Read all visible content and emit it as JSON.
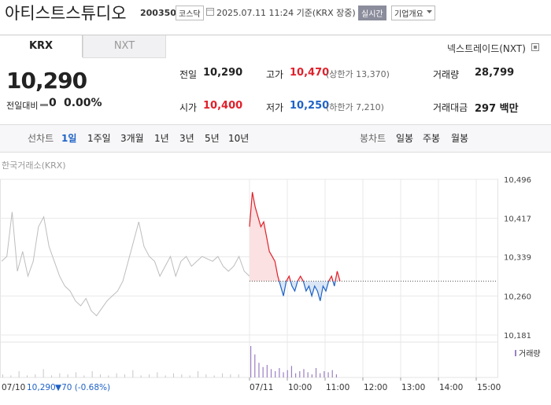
{
  "header": {
    "name": "아티스트스튜디오",
    "code": "200350",
    "market": "코스닥",
    "timestamp": "2025.07.11 11:24 기준(KRX 장중)",
    "realtime": "실시간",
    "company_info": "기업개요"
  },
  "tabs": [
    "KRX",
    "NXT"
  ],
  "nxt_link": "넥스트레이드(NXT)",
  "quote": {
    "price": "10,290",
    "change_label": "전일대비",
    "change": "0",
    "change_pct": "0.00%"
  },
  "stats": [
    [
      {
        "label": "전일",
        "value": "10,290"
      },
      {
        "label": "고가",
        "value": "10,470",
        "note": "(상한가 13,370)",
        "color": "#e0202b"
      },
      {
        "label": "거래량",
        "value": "28,799"
      }
    ],
    [
      {
        "label": "시가",
        "value": "10,400",
        "color": "#e0202b"
      },
      {
        "label": "저가",
        "value": "10,250",
        "note": "(하한가 7,210)",
        "color": "#1f62c7"
      },
      {
        "label": "거래대금",
        "value": "297 백만"
      }
    ]
  ],
  "periods": {
    "line_label": "선차트",
    "line": [
      "1일",
      "1주일",
      "3개월",
      "1년",
      "3년",
      "5년",
      "10년"
    ],
    "selected": 0,
    "candle_label": "봉차트",
    "candle": [
      "일봉",
      "주봉",
      "월봉"
    ]
  },
  "chart_data": {
    "type": "line",
    "source": "한국거래소(KRX)",
    "ylim": [
      10181,
      10496
    ],
    "yticks": [
      {
        "value": 10181,
        "label": "10,181"
      },
      {
        "value": 10260,
        "label": "10,260"
      },
      {
        "value": 10339,
        "label": "10,339"
      },
      {
        "value": 10417,
        "label": "10,417"
      },
      {
        "value": 10496,
        "label": "10,496"
      }
    ],
    "xticks": [
      "07/11",
      "10:00",
      "11:00",
      "12:00",
      "13:00",
      "14:00",
      "15:00"
    ],
    "baseline": 10290,
    "grid": true,
    "series": [
      {
        "color": "#bdbdbd",
        "values": [
          10330,
          10340,
          10430,
          10310,
          10350,
          10300,
          10330,
          10400,
          10420,
          10360,
          10330,
          10300,
          10280,
          10270,
          10250,
          10240,
          10255,
          10230,
          10220,
          10235,
          10250,
          10260,
          10270,
          10290,
          10330,
          10370,
          10410,
          10360,
          10340,
          10330,
          10300,
          10320,
          10340,
          10300,
          10330,
          10340,
          10320,
          10330,
          10340,
          10335,
          10330,
          10340,
          10320,
          10310,
          10320,
          10340,
          10310,
          10300
        ]
      },
      {
        "color": "#e0202b",
        "down_color": "#1f62c7",
        "up_fill": "#fbe1e1",
        "down_fill": "#dae6f5",
        "values": [
          10400,
          10470,
          10440,
          10420,
          10400,
          10410,
          10380,
          10350,
          10340,
          10330,
          10300,
          10280,
          10260,
          10290,
          10300,
          10280,
          10270,
          10290,
          10300,
          10290,
          10270,
          10280,
          10260,
          10280,
          10270,
          10250,
          10280,
          10270,
          10290,
          10300,
          10280,
          10310,
          10290
        ]
      }
    ],
    "volume": {
      "label": "거래량",
      "prev_color": "#c8c8c8",
      "today_color": "#9b7fc4",
      "prev": [
        3,
        2,
        6,
        2,
        3,
        8,
        2,
        4,
        3,
        5,
        2,
        6,
        3,
        2,
        4,
        3,
        7,
        2,
        3,
        5,
        2,
        4,
        3,
        2,
        6,
        3,
        2,
        4,
        3,
        3
      ],
      "today": [
        30,
        22,
        14,
        10,
        12,
        8,
        6,
        9,
        5,
        7,
        11,
        4,
        6,
        8,
        5,
        3,
        9,
        4,
        6,
        5,
        7,
        3
      ]
    },
    "prev_close": {
      "date": "07/10",
      "price": "10,290",
      "change": "▼70 (-0.68%)"
    }
  }
}
